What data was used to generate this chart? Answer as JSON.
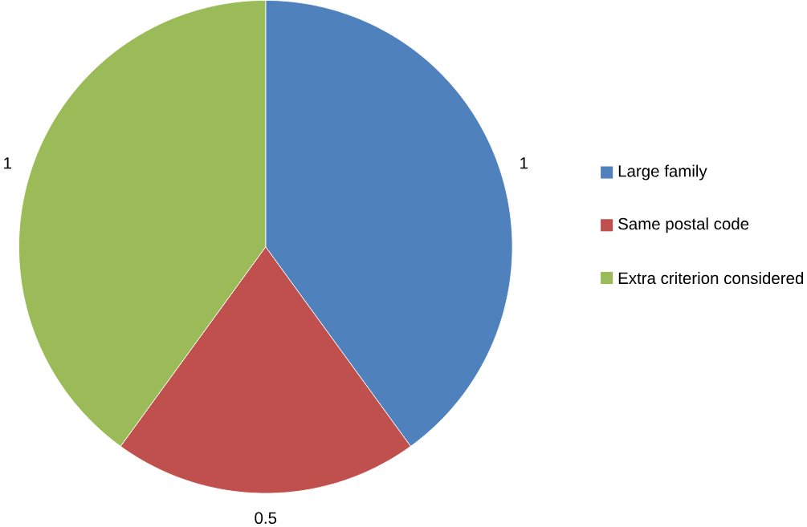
{
  "chart_data": {
    "type": "pie",
    "categories": [
      "Large family",
      "Same postal code",
      "Extra criterion considered"
    ],
    "values": [
      1,
      0.5,
      1
    ],
    "colors": [
      "#4f81bd",
      "#c0504d",
      "#9bbb59"
    ],
    "data_labels": true,
    "legend": "right"
  }
}
